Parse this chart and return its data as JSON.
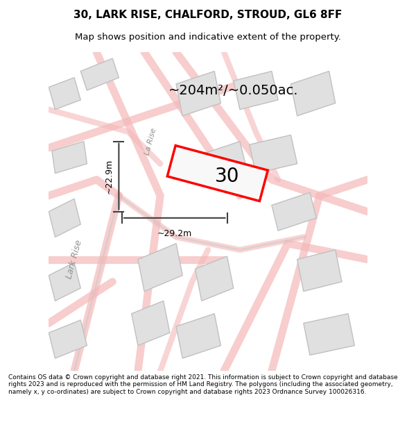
{
  "title_line1": "30, LARK RISE, CHALFORD, STROUD, GL6 8FF",
  "title_line2": "Map shows position and indicative extent of the property.",
  "area_label": "~204m²/~0.050ac.",
  "plot_number": "30",
  "dim_width": "~29.2m",
  "dim_height": "~22.9m",
  "footer_text": "Contains OS data © Crown copyright and database right 2021. This information is subject to Crown copyright and database rights 2023 and is reproduced with the permission of HM Land Registry. The polygons (including the associated geometry, namely x, y co-ordinates) are subject to Crown copyright and database rights 2023 Ordnance Survey 100026316.",
  "bg_color": "#f5f5f5",
  "map_bg": "#f0f0f0",
  "road_color_pink": "#f5b8b8",
  "road_color_gray": "#d0d0d0",
  "building_fill": "#e0e0e0",
  "building_edge": "#c0c0c0",
  "plot_edge": "#ff0000",
  "plot_fill": "#f5f5f5",
  "dim_line_color": "#404040",
  "street_label1": "Lark Rise",
  "street_label2": "La Rise"
}
